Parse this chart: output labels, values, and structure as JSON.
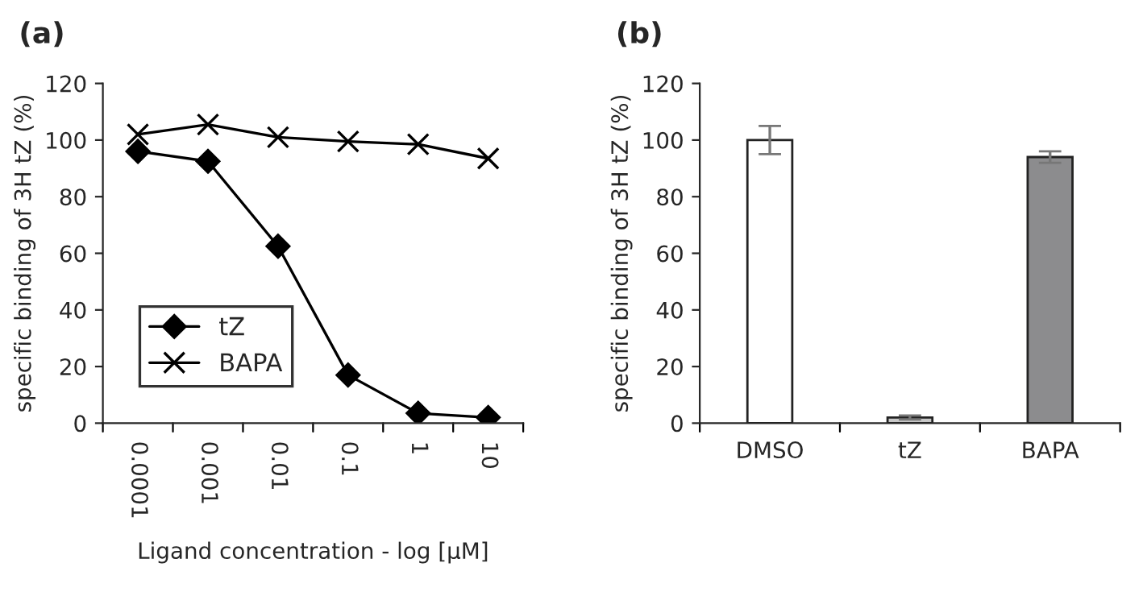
{
  "chart_data": [
    {
      "type": "line",
      "title": "(a)",
      "xlabel": "Ligand concentration - log [μM]",
      "ylabel": "specific binding of 3H tZ (%)",
      "categories": [
        "0.0001",
        "0.001",
        "0.01",
        "0.1",
        "1",
        "10"
      ],
      "ylim": [
        0,
        120
      ],
      "yticks": [
        0,
        20,
        40,
        60,
        80,
        100,
        120
      ],
      "grid": false,
      "legend": "bottom left",
      "series": [
        {
          "name": "tZ",
          "color": "#000000",
          "marker": "diamond",
          "values": [
            96,
            92.5,
            62.5,
            17,
            3.5,
            2
          ]
        },
        {
          "name": "BAPA",
          "color": "#000000",
          "marker": "cross",
          "values": [
            102,
            105.5,
            101,
            99.5,
            98.5,
            93.5
          ]
        }
      ]
    },
    {
      "type": "bar",
      "title": "(b)",
      "ylabel": "specific binding of 3H tZ (%)",
      "categories": [
        "DMSO",
        "tZ",
        "BAPA"
      ],
      "values": [
        100,
        2,
        94
      ],
      "errors": [
        5,
        0.7,
        2
      ],
      "colors": [
        "#ffffff",
        "#c8c8c8",
        "#8c8c8e"
      ],
      "ylim": [
        0,
        120
      ],
      "yticks": [
        0,
        20,
        40,
        60,
        80,
        100,
        120
      ],
      "grid": false
    }
  ]
}
